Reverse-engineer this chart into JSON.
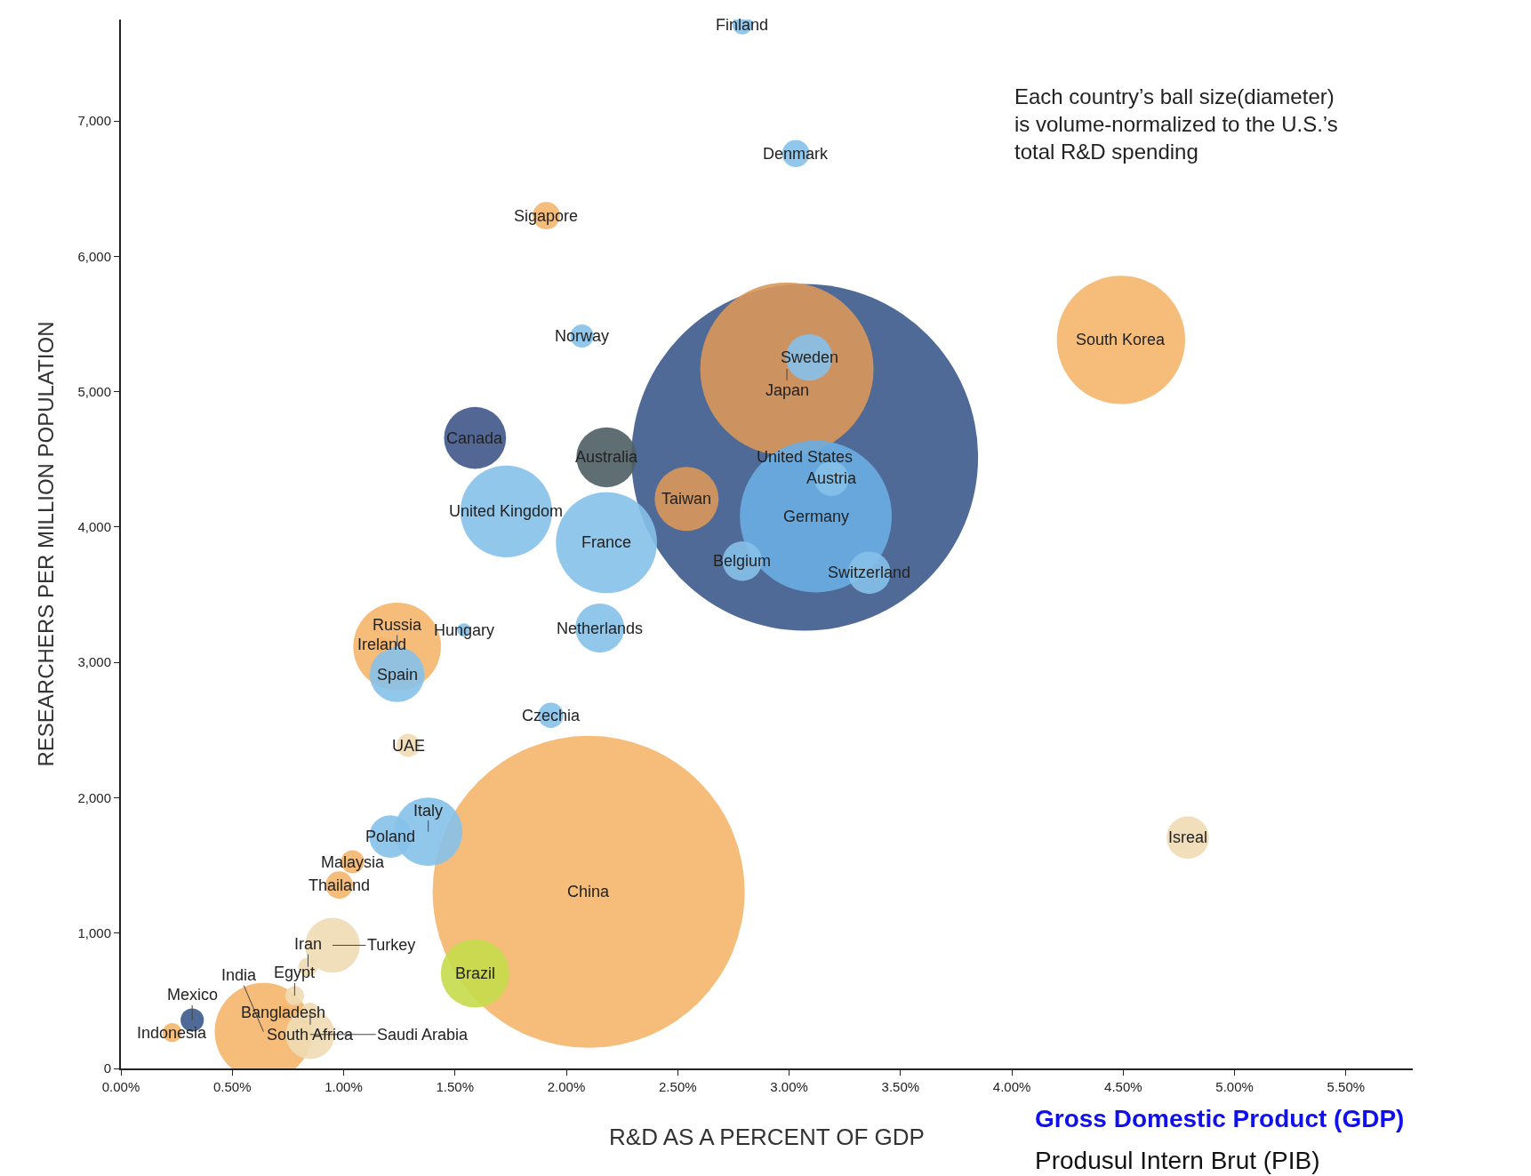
{
  "chart_data": {
    "type": "bubble",
    "xlabel": "R&D AS A PERCENT OF GDP",
    "ylabel": "RESEARCHERS PER MILLION POPULATION",
    "x": [
      3.07,
      2.1,
      2.99,
      3.12,
      4.49,
      2.18,
      1.73,
      0.64,
      1.24,
      1.59,
      1.38,
      2.54,
      1.59,
      2.18,
      1.24,
      3.36,
      2.15,
      0.95,
      0.85,
      3.09,
      1.21,
      4.79,
      3.19,
      2.79,
      0.73,
      0.78,
      0.84,
      0.85,
      1.91,
      3.03,
      0.98,
      0.32,
      2.07,
      1.04,
      1.29,
      1.93,
      0.23,
      2.79,
      1.17,
      1.54
    ],
    "values": [
      4516,
      1305,
      5168,
      4079,
      5383,
      3885,
      4115,
      272,
      3118,
      4659,
      1749,
      4208,
      703,
      4516,
      2910,
      3663,
      3254,
      910,
      251,
      5254,
      1713,
      1706,
      4358,
      3749,
      416,
      538,
      750,
      416,
      6301,
      6760,
      1355,
      358,
      5412,
      1527,
      2387,
      2609,
      265,
      7713,
      3130,
      3240
    ],
    "sizes": [
      1,
      0.81,
      0.25,
      0.192,
      0.137,
      0.085,
      0.07,
      0.079,
      0.064,
      0.032,
      0.039,
      0.034,
      0.039,
      0.03,
      0.025,
      0.015,
      0.02,
      0.025,
      0.02,
      0.018,
      0.015,
      0.015,
      0.01,
      0.013,
      0.002,
      0.003,
      0.003,
      0.003,
      0.0062,
      0.0062,
      0.0062,
      0.0045,
      0.0045,
      0.0045,
      0.0045,
      0.0053,
      0.003,
      0.0032,
      0.002,
      0.0015
    ],
    "colors": [
      "#3d5a8c",
      "#f4b56c",
      "#d9975a",
      "#6aaee3",
      "#f4b56c",
      "#86c1ea",
      "#86c1ea",
      "#f4b56c",
      "#f4b56c",
      "#3f5788",
      "#86c1ea",
      "#d9975a",
      "#c5dc4a",
      "#4d5e63",
      "#86c1ea",
      "#86c1ea",
      "#86c1ea",
      "#efdcb4",
      "#efdcb4",
      "#86c1ea",
      "#86c1ea",
      "#efdcb4",
      "#86c1ea",
      "#86c1ea",
      "#f4b56c",
      "#efdcb4",
      "#efdcb4",
      "#efdcb4",
      "#f4b56c",
      "#86c1ea",
      "#f4b56c",
      "#3d5a8c",
      "#86c1ea",
      "#f4b56c",
      "#efdcb4",
      "#86c1ea",
      "#f4b56c",
      "#86c1ea",
      "#f4b56c",
      "#86c1ea"
    ],
    "xlim": [
      0,
      5.8
    ],
    "ylim": [
      0,
      7750
    ],
    "xticks": [
      {
        "value": 0,
        "label": "0.00%"
      },
      {
        "value": 0.5,
        "label": "0.50%"
      },
      {
        "value": 1,
        "label": "1.00%"
      },
      {
        "value": 1.5,
        "label": "1.50%"
      },
      {
        "value": 2,
        "label": "2.00%"
      },
      {
        "value": 2.5,
        "label": "2.50%"
      },
      {
        "value": 3,
        "label": "3.00%"
      },
      {
        "value": 3.5,
        "label": "3.50%"
      },
      {
        "value": 4,
        "label": "4.00%"
      },
      {
        "value": 4.5,
        "label": "4.50%"
      },
      {
        "value": 5,
        "label": "5.00%"
      },
      {
        "value": 5.5,
        "label": "5.50%"
      }
    ],
    "yticks": [
      0,
      {
        "value": 1000,
        "label": "1,000"
      },
      {
        "value": 2000,
        "label": "2,000"
      },
      {
        "value": 3000,
        "label": "3,000"
      },
      {
        "value": 4000,
        "label": "4,000"
      },
      {
        "value": 5000,
        "label": "5,000"
      },
      {
        "value": 6000,
        "label": "6,000"
      },
      {
        "value": 7000,
        "label": "7,000"
      }
    ],
    "annotations": [
      "Each country’s ball size(diameter)\nis volume-normalized to the U.S.’s\ntotal R&D spending",
      "Gross Domestic Product (GDP)",
      "Produsul Intern Brut (PIB)",
      {
        "text": "United States",
        "x": 3.07,
        "y": 4516
      },
      {
        "text": "China",
        "x": 2.1,
        "y": 1305
      },
      {
        "text": "Japan",
        "x": 2.99,
        "y": 5168
      },
      {
        "text": "Germany",
        "x": 3.12,
        "y": 4079
      },
      {
        "text": "South Korea",
        "x": 4.49,
        "y": 5383
      },
      {
        "text": "France",
        "x": 2.18,
        "y": 3885
      },
      {
        "text": "United Kingdom",
        "x": 1.73,
        "y": 4115
      },
      {
        "text": "India",
        "x": 0.64,
        "y": 272
      },
      {
        "text": "Russia",
        "x": 1.24,
        "y": 3118
      },
      {
        "text": "Canada",
        "x": 1.59,
        "y": 4659
      },
      {
        "text": "Italy",
        "x": 1.38,
        "y": 1749
      },
      {
        "text": "Taiwan",
        "x": 2.54,
        "y": 4208
      },
      {
        "text": "Brazil",
        "x": 1.59,
        "y": 703
      },
      {
        "text": "Australia",
        "x": 2.18,
        "y": 4516
      },
      {
        "text": "Spain",
        "x": 1.24,
        "y": 2910
      },
      {
        "text": "Switzerland",
        "x": 3.36,
        "y": 3663
      },
      {
        "text": "Netherlands",
        "x": 2.15,
        "y": 3254
      },
      {
        "text": "Turkey",
        "x": 0.95,
        "y": 910
      },
      {
        "text": "Saudi Arabia",
        "x": 0.85,
        "y": 251
      },
      {
        "text": "Sweden",
        "x": 3.09,
        "y": 5254
      },
      {
        "text": "Poland",
        "x": 1.21,
        "y": 1713
      },
      {
        "text": "Isreal",
        "x": 4.79,
        "y": 1706
      },
      {
        "text": "Austria",
        "x": 3.19,
        "y": 4358
      },
      {
        "text": "Belgium",
        "x": 2.79,
        "y": 3749
      },
      {
        "text": "Bangladesh",
        "x": 0.73,
        "y": 416
      },
      {
        "text": "Egypt",
        "x": 0.78,
        "y": 538
      },
      {
        "text": "Iran",
        "x": 0.84,
        "y": 750
      },
      {
        "text": "South Africa",
        "x": 0.85,
        "y": 416
      },
      {
        "text": "Sigapore",
        "x": 1.91,
        "y": 6301
      },
      {
        "text": "Denmark",
        "x": 3.03,
        "y": 6760
      },
      {
        "text": "Thailand",
        "x": 0.98,
        "y": 1355
      },
      {
        "text": "Mexico",
        "x": 0.32,
        "y": 358
      },
      {
        "text": "Norway",
        "x": 2.07,
        "y": 5412
      },
      {
        "text": "Malaysia",
        "x": 1.04,
        "y": 1527
      },
      {
        "text": "UAE",
        "x": 1.29,
        "y": 2387
      },
      {
        "text": "Czechia",
        "x": 1.93,
        "y": 2609
      },
      {
        "text": "Indonesia",
        "x": 0.23,
        "y": 265
      },
      {
        "text": "Finland",
        "x": 2.79,
        "y": 7713
      },
      {
        "text": "Ireland",
        "x": 1.17,
        "y": 3130
      },
      {
        "text": "Hungary",
        "x": 1.54,
        "y": 3240
      }
    ]
  }
}
